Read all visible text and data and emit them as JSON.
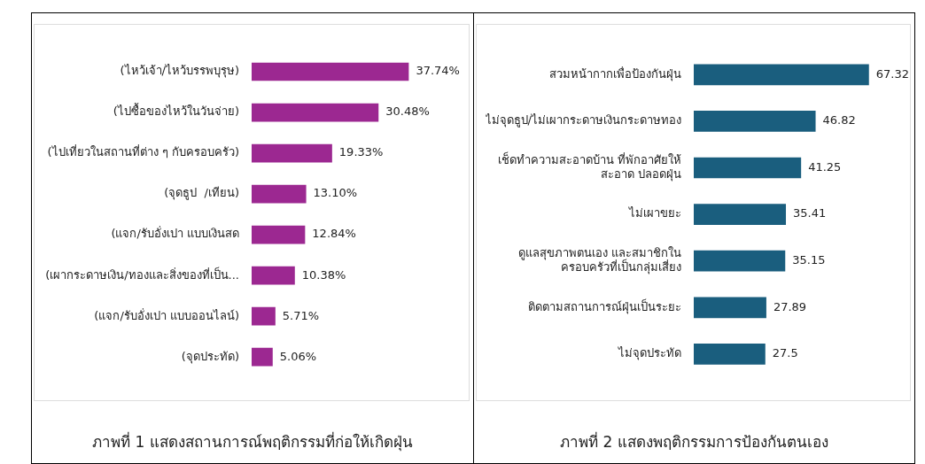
{
  "chart_data": [
    {
      "type": "bar",
      "orientation": "horizontal",
      "title": "ภาพที่ 1 แสดงสถานการณ์พฤติกรรมที่ก่อให้เกิดฝุ่น",
      "categories": [
        "(ไหว้เจ้า/ไหว้บรรพบุรุษ)",
        "(ไปซื้อของไหว้ในวันจ่าย)",
        "(ไปเที่ยวในสถานที่ต่าง ๆ กับครอบครัว)",
        "(จุดธูป  /เทียน)",
        "(แจก/รับอั่งเปา แบบเงินสด",
        "(เผากระดาษเงิน/ทองและสิ่งของที่เป็น...",
        "(แจก/รับอั่งเปา แบบออนไลน์)",
        "(จุดประทัด)"
      ],
      "values": [
        37.74,
        30.48,
        19.33,
        13.1,
        12.84,
        10.38,
        5.71,
        5.06
      ],
      "value_labels": [
        "37.74%",
        "30.48%",
        "19.33%",
        "13.10%",
        "12.84%",
        "10.38%",
        "5.71%",
        "5.06%"
      ],
      "color": "#9c2891",
      "grid": false,
      "legend": false,
      "tick_labels": "y"
    },
    {
      "type": "bar",
      "orientation": "horizontal",
      "title": "ภาพที่ 2 แสดงพฤติกรรมการป้องกันตนเอง",
      "categories": [
        "สวมหน้ากากเพื่อป้องกันฝุ่น",
        "ไม่จุดธูป/ไม่เผากระดาษเงินกระดาษทอง",
        "เช็ดทำความสะอาดบ้าน ที่พักอาศัยให้\nสะอาด ปลอดฝุ่น",
        "ไม่เผาขยะ",
        "ดูแลสุขภาพตนเอง และสมาชิกใน\nครอบครัวที่เป็นกลุ่มเสี่ยง",
        "ติดตามสถานการณ์ฝุ่นเป็นระยะ",
        "ไม่จุดประทัด"
      ],
      "values": [
        67.32,
        46.82,
        41.25,
        35.41,
        35.15,
        27.89,
        27.5
      ],
      "data_labels": true,
      "color": "#1a5e7e",
      "grid": false,
      "legend": false,
      "tick_labels": "y"
    }
  ]
}
